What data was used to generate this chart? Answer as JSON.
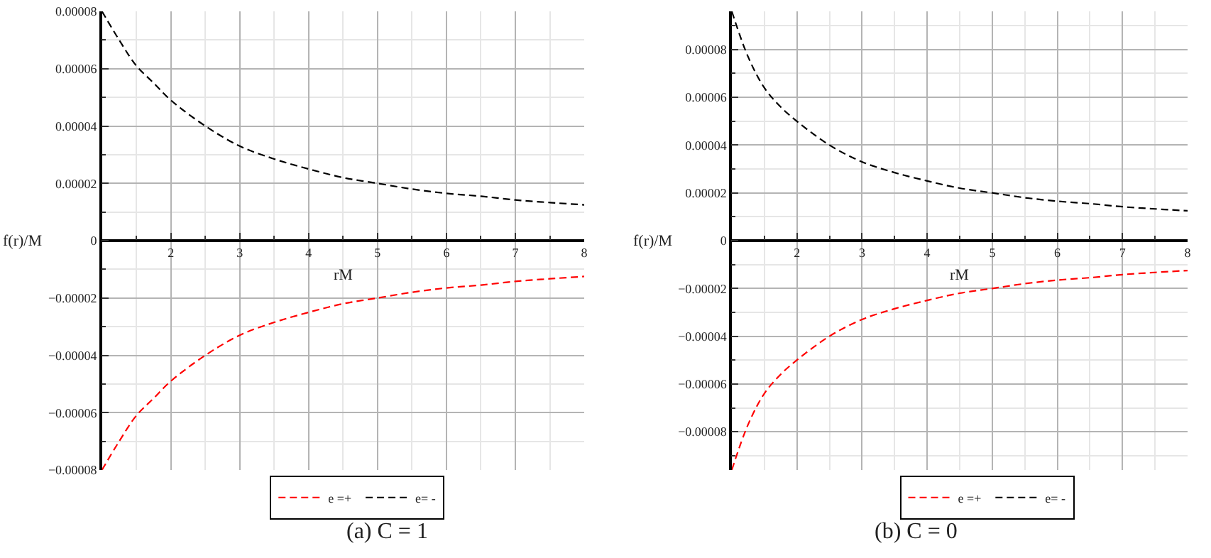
{
  "chart_data": [
    {
      "type": "line",
      "annotations": [
        "(a) C = 1"
      ],
      "xlabel": "rM",
      "ylabel": "f(r)/M",
      "legend": "bottom",
      "grid": true,
      "line_style": "dashed",
      "marker": "none",
      "x": [
        1,
        1.25,
        1.5,
        1.75,
        2,
        2.5,
        3,
        3.5,
        4,
        4.5,
        5,
        5.5,
        6,
        6.5,
        7,
        7.5,
        8
      ],
      "xlim": [
        1,
        8
      ],
      "xticks": [
        2,
        3,
        4,
        5,
        6,
        7,
        8
      ],
      "ylim": [
        -8e-05,
        8e-05
      ],
      "yticks": [
        {
          "value": -8e-05,
          "label": "−0.00008"
        },
        {
          "value": -6e-05,
          "label": "−0.00006"
        },
        {
          "value": -4e-05,
          "label": "−0.00004"
        },
        {
          "value": -2e-05,
          "label": "−0.00002"
        },
        0,
        {
          "value": 2e-05,
          "label": "0.00002"
        },
        {
          "value": 4e-05,
          "label": "0.00004"
        },
        {
          "value": 6e-05,
          "label": "0.00006"
        },
        {
          "value": 8e-05,
          "label": "0.00008"
        }
      ],
      "series": [
        {
          "name": "e =+",
          "color": "#ff0000",
          "values": [
            -8e-05,
            -7e-05,
            -6.1e-05,
            -5.5e-05,
            -4.9e-05,
            -4e-05,
            -3.3e-05,
            -2.85e-05,
            -2.5e-05,
            -2.2e-05,
            -2e-05,
            -1.8e-05,
            -1.65e-05,
            -1.55e-05,
            -1.42e-05,
            -1.33e-05,
            -1.25e-05
          ]
        },
        {
          "name": "e= -",
          "color": "#000000",
          "values": [
            8e-05,
            7e-05,
            6.1e-05,
            5.5e-05,
            4.9e-05,
            4e-05,
            3.3e-05,
            2.85e-05,
            2.5e-05,
            2.2e-05,
            2e-05,
            1.8e-05,
            1.65e-05,
            1.55e-05,
            1.42e-05,
            1.33e-05,
            1.25e-05
          ]
        }
      ]
    },
    {
      "type": "line",
      "annotations": [
        "(b) C = 0"
      ],
      "xlabel": "rM",
      "ylabel": "f(r)/M",
      "legend": "bottom",
      "grid": true,
      "line_style": "dashed",
      "marker": "none",
      "x": [
        1,
        1.25,
        1.5,
        1.75,
        2,
        2.5,
        3,
        3.5,
        4,
        4.5,
        5,
        5.5,
        6,
        6.5,
        7,
        7.5,
        8
      ],
      "xlim": [
        1,
        8
      ],
      "xticks": [
        2,
        3,
        4,
        5,
        6,
        7,
        8
      ],
      "ylim": [
        -9.6e-05,
        9.6e-05
      ],
      "yticks": [
        {
          "value": -8e-05,
          "label": "−0.00008"
        },
        {
          "value": -6e-05,
          "label": "−0.00006"
        },
        {
          "value": -4e-05,
          "label": "−0.00004"
        },
        {
          "value": -2e-05,
          "label": "−0.00002"
        },
        0,
        {
          "value": 2e-05,
          "label": "0.00002"
        },
        {
          "value": 4e-05,
          "label": "0.00004"
        },
        {
          "value": 6e-05,
          "label": "0.00006"
        },
        {
          "value": 8e-05,
          "label": "0.00008"
        }
      ],
      "series": [
        {
          "name": "e =+",
          "color": "#ff0000",
          "values": [
            -9.6e-05,
            -7.7e-05,
            -6.4e-05,
            -5.6e-05,
            -5e-05,
            -4e-05,
            -3.3e-05,
            -2.85e-05,
            -2.5e-05,
            -2.2e-05,
            -2e-05,
            -1.8e-05,
            -1.65e-05,
            -1.55e-05,
            -1.42e-05,
            -1.33e-05,
            -1.25e-05
          ]
        },
        {
          "name": "e= -",
          "color": "#000000",
          "values": [
            9.6e-05,
            7.7e-05,
            6.4e-05,
            5.6e-05,
            5e-05,
            4e-05,
            3.3e-05,
            2.85e-05,
            2.5e-05,
            2.2e-05,
            2e-05,
            1.8e-05,
            1.65e-05,
            1.55e-05,
            1.42e-05,
            1.33e-05,
            1.25e-05
          ]
        }
      ]
    }
  ]
}
